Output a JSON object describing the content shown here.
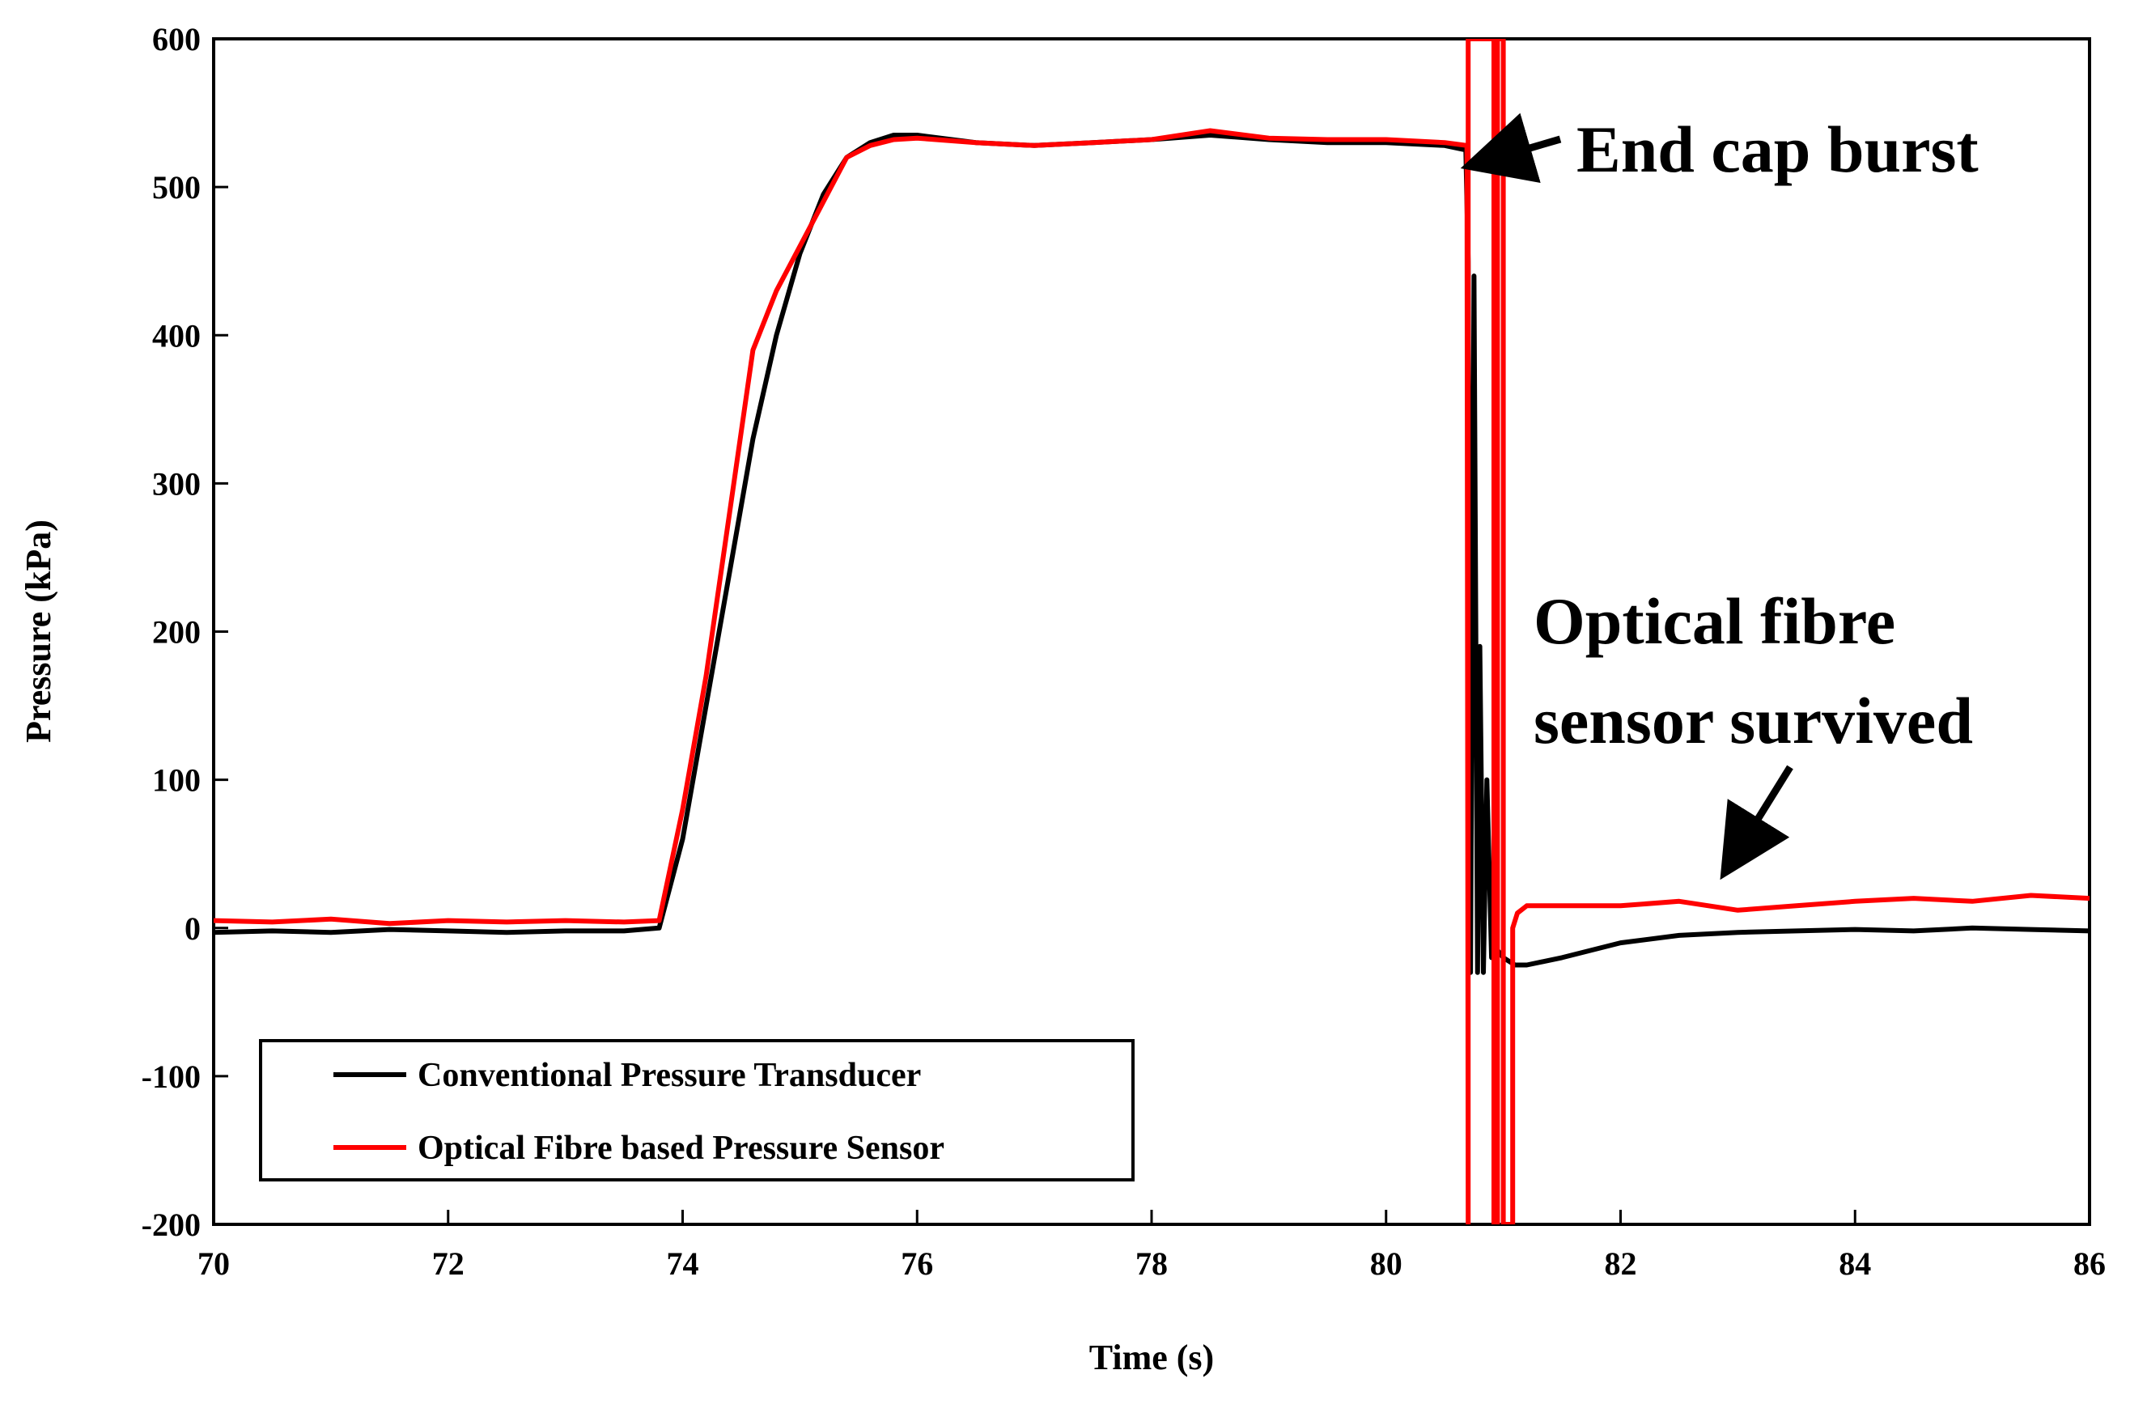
{
  "chart_data": {
    "type": "line",
    "title": "",
    "xlabel": "Time (s)",
    "ylabel": "Pressure (kPa)",
    "xlim": [
      70,
      86
    ],
    "ylim": [
      -200,
      600
    ],
    "xticks": [
      70,
      72,
      74,
      76,
      78,
      80,
      82,
      84,
      86
    ],
    "yticks": [
      600,
      500,
      400,
      300,
      200,
      100,
      0,
      -100,
      -200
    ],
    "grid": false,
    "legend_position": "bottom-left",
    "series": [
      {
        "name": "Conventional Pressure Transducer",
        "color": "#000000",
        "x": [
          70,
          70.5,
          71,
          71.5,
          72,
          72.5,
          73,
          73.5,
          73.8,
          74.0,
          74.2,
          74.4,
          74.6,
          74.8,
          75.0,
          75.2,
          75.4,
          75.6,
          75.8,
          76.0,
          76.5,
          77,
          77.5,
          78,
          78.5,
          79,
          79.5,
          80,
          80.5,
          80.68,
          80.7,
          80.72,
          80.75,
          80.78,
          80.8,
          80.83,
          80.86,
          80.9,
          80.95,
          81.0,
          81.1,
          81.2,
          81.5,
          82,
          82.5,
          83,
          83.5,
          84,
          84.5,
          85,
          85.5,
          86
        ],
        "y": [
          -3,
          -2,
          -3,
          -1,
          -2,
          -3,
          -2,
          -2,
          0,
          60,
          150,
          240,
          330,
          400,
          455,
          495,
          520,
          530,
          535,
          535,
          530,
          528,
          530,
          532,
          535,
          532,
          530,
          530,
          528,
          525,
          450,
          -30,
          440,
          -30,
          190,
          -30,
          100,
          -20,
          -15,
          -20,
          -25,
          -25,
          -20,
          -10,
          -5,
          -3,
          -2,
          -1,
          -2,
          0,
          -1,
          -2
        ]
      },
      {
        "name": "Optical Fibre based Pressure Sensor",
        "color": "#ff0000",
        "x": [
          70,
          70.5,
          71,
          71.5,
          72,
          72.5,
          73,
          73.5,
          73.8,
          74.0,
          74.2,
          74.4,
          74.6,
          74.8,
          75.0,
          75.2,
          75.4,
          75.6,
          75.8,
          76.0,
          76.5,
          77,
          77.5,
          78,
          78.5,
          79,
          79.5,
          80,
          80.5,
          80.69,
          80.7,
          80.7,
          80.92,
          80.92,
          80.95,
          80.95,
          81.0,
          81.0,
          81.08,
          81.08,
          81.12,
          81.2,
          81.5,
          82,
          82.5,
          83,
          83.5,
          84,
          84.5,
          85,
          85.5,
          86
        ],
        "y": [
          5,
          4,
          6,
          3,
          5,
          4,
          5,
          4,
          5,
          80,
          170,
          280,
          390,
          430,
          460,
          490,
          520,
          528,
          532,
          533,
          530,
          528,
          530,
          532,
          538,
          533,
          532,
          532,
          530,
          528,
          -200,
          600,
          600,
          -200,
          -200,
          600,
          600,
          -200,
          -200,
          0,
          10,
          15,
          15,
          15,
          18,
          12,
          15,
          18,
          20,
          18,
          22,
          20
        ]
      }
    ],
    "annotations": [
      {
        "text": "End cap burst",
        "x": 80.7,
        "y": 528
      },
      {
        "text": "Optical fibre",
        "x": 82.7,
        "y": 25
      },
      {
        "text": "sensor survived",
        "x": 82.7,
        "y": 25
      }
    ]
  }
}
